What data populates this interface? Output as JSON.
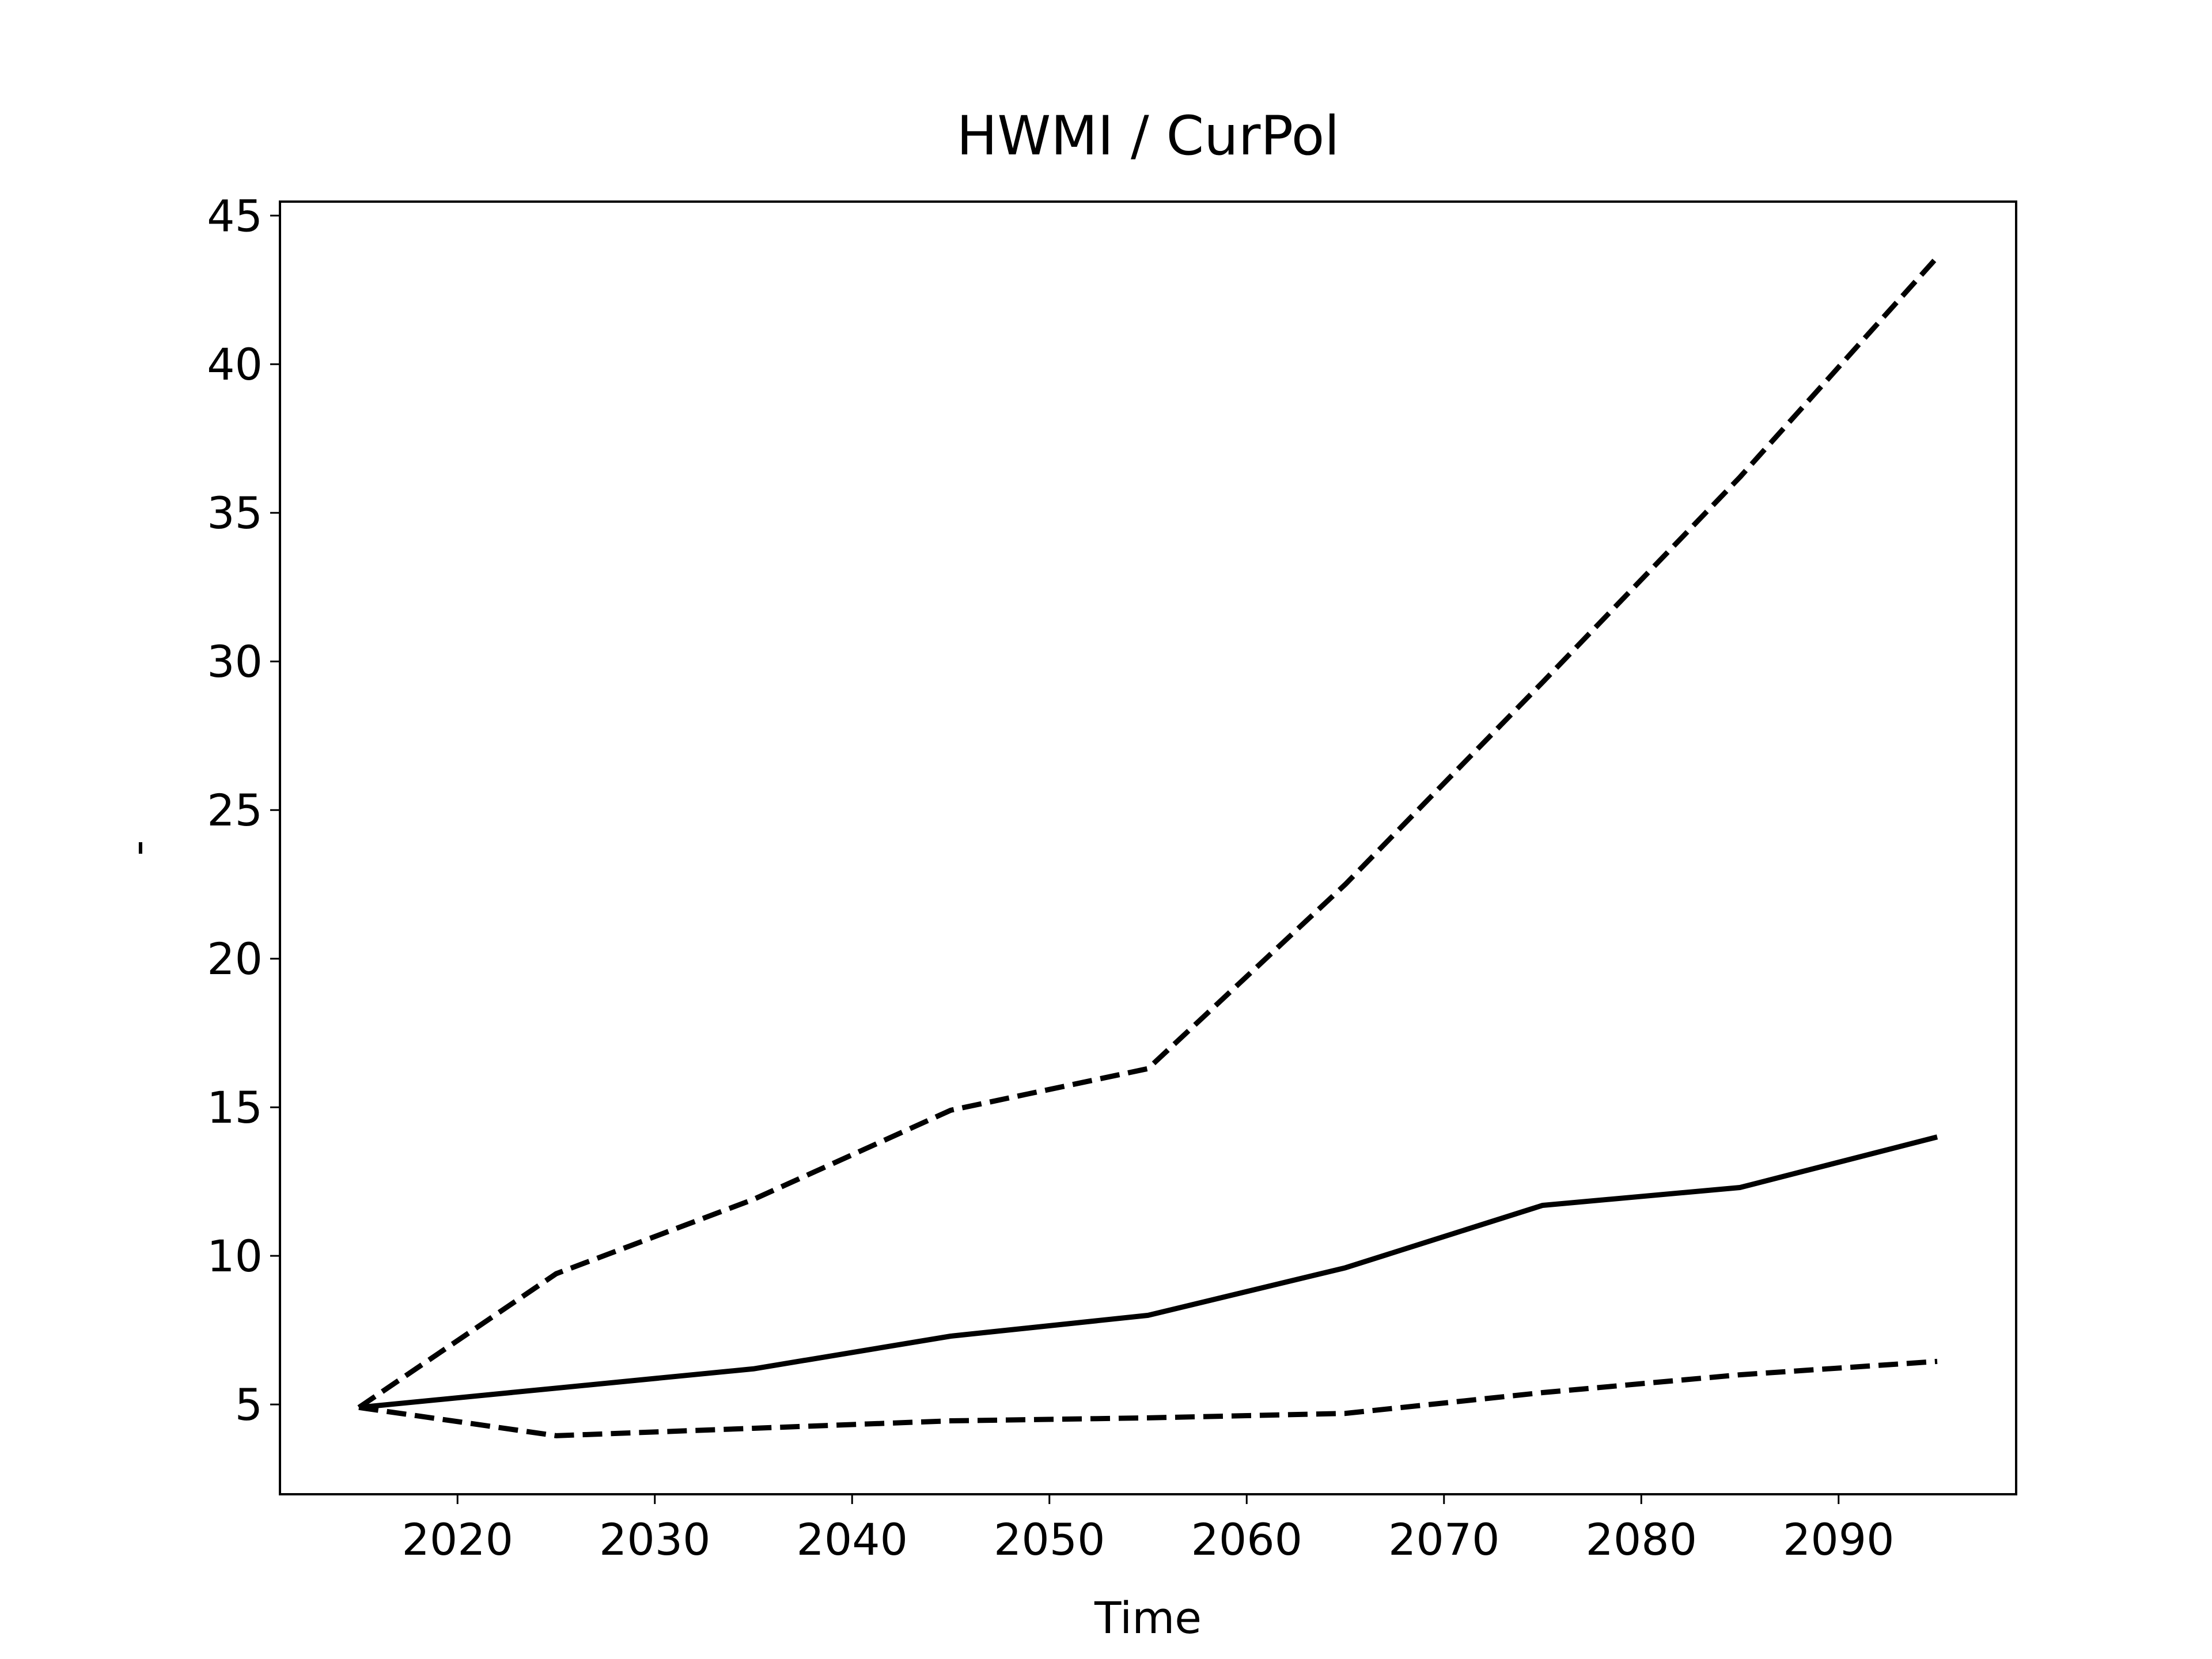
{
  "chart_data": {
    "type": "line",
    "title": "HWMI / CurPol",
    "x_label": "Time",
    "y_label": "-",
    "x": [
      2015,
      2025,
      2035,
      2045,
      2055,
      2065,
      2075,
      2085,
      2095
    ],
    "series": [
      {
        "color": "#000000",
        "dash": false,
        "values": [
          4.9,
          5.55,
          6.2,
          7.3,
          8.0,
          9.6,
          11.7,
          12.3,
          14.0
        ]
      },
      {
        "color": "#000000",
        "dash": true,
        "values": [
          4.9,
          9.4,
          11.9,
          14.9,
          16.3,
          22.5,
          29.3,
          36.2,
          43.6
        ]
      },
      {
        "color": "#000000",
        "dash": true,
        "values": [
          4.9,
          3.95,
          4.2,
          4.45,
          4.55,
          4.7,
          5.4,
          6.0,
          6.45
        ]
      }
    ],
    "xlim": [
      2011,
      2099
    ],
    "xticks": [
      2020,
      2030,
      2040,
      2050,
      2060,
      2070,
      2080,
      2090
    ],
    "ylim": [
      1.98,
      45.47
    ],
    "yticks": [
      5,
      10,
      15,
      20,
      25,
      30,
      35,
      40,
      45
    ],
    "grid": false
  }
}
